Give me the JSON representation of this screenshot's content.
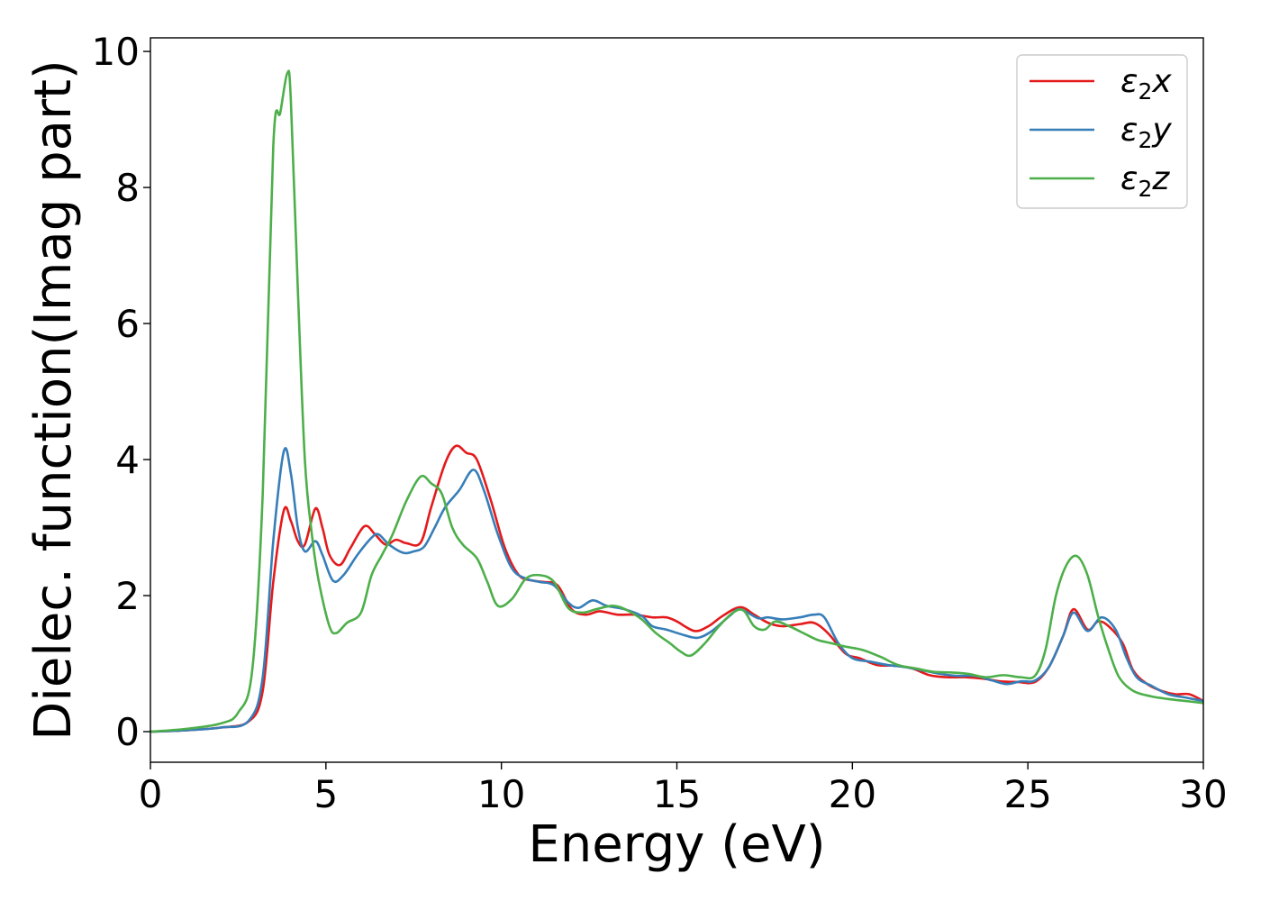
{
  "chart_data": {
    "type": "line",
    "title": "",
    "xlabel": "Energy (eV)",
    "ylabel": "Dielec. function(Imag part)",
    "xlim": [
      0,
      30
    ],
    "ylim": [
      -0.45,
      10.2
    ],
    "xticks": [
      0,
      5,
      10,
      15,
      20,
      25,
      30
    ],
    "yticks": [
      0,
      2,
      4,
      6,
      8,
      10
    ],
    "grid": false,
    "legend_position": "top-right",
    "series": [
      {
        "name": "ε₂x",
        "legend_base": "ε",
        "legend_sub": "2",
        "legend_suffix": "x",
        "color": "#e41a1c",
        "points": [
          [
            0,
            0.0
          ],
          [
            1,
            0.02
          ],
          [
            2,
            0.06
          ],
          [
            2.8,
            0.15
          ],
          [
            3.2,
            0.6
          ],
          [
            3.5,
            2.2
          ],
          [
            3.8,
            3.25
          ],
          [
            4.0,
            3.1
          ],
          [
            4.2,
            2.8
          ],
          [
            4.4,
            2.75
          ],
          [
            4.7,
            3.28
          ],
          [
            4.9,
            3.0
          ],
          [
            5.1,
            2.6
          ],
          [
            5.4,
            2.45
          ],
          [
            5.7,
            2.7
          ],
          [
            6.1,
            3.02
          ],
          [
            6.4,
            2.9
          ],
          [
            6.7,
            2.75
          ],
          [
            7.0,
            2.82
          ],
          [
            7.3,
            2.77
          ],
          [
            7.7,
            2.78
          ],
          [
            8.0,
            3.3
          ],
          [
            8.4,
            3.95
          ],
          [
            8.7,
            4.2
          ],
          [
            9.0,
            4.1
          ],
          [
            9.3,
            4.0
          ],
          [
            9.7,
            3.4
          ],
          [
            10.1,
            2.7
          ],
          [
            10.5,
            2.3
          ],
          [
            10.9,
            2.22
          ],
          [
            11.2,
            2.2
          ],
          [
            11.6,
            2.15
          ],
          [
            12.0,
            1.8
          ],
          [
            12.4,
            1.72
          ],
          [
            12.8,
            1.77
          ],
          [
            13.3,
            1.72
          ],
          [
            13.8,
            1.72
          ],
          [
            14.3,
            1.68
          ],
          [
            14.7,
            1.68
          ],
          [
            15.0,
            1.62
          ],
          [
            15.5,
            1.48
          ],
          [
            15.9,
            1.55
          ],
          [
            16.3,
            1.7
          ],
          [
            16.8,
            1.83
          ],
          [
            17.2,
            1.72
          ],
          [
            17.6,
            1.6
          ],
          [
            18.0,
            1.55
          ],
          [
            18.5,
            1.58
          ],
          [
            18.9,
            1.6
          ],
          [
            19.3,
            1.45
          ],
          [
            19.8,
            1.15
          ],
          [
            20.2,
            1.08
          ],
          [
            20.7,
            0.98
          ],
          [
            21.2,
            0.97
          ],
          [
            21.7,
            0.93
          ],
          [
            22.2,
            0.83
          ],
          [
            22.7,
            0.8
          ],
          [
            23.2,
            0.8
          ],
          [
            23.7,
            0.78
          ],
          [
            24.2,
            0.74
          ],
          [
            24.7,
            0.73
          ],
          [
            25.2,
            0.73
          ],
          [
            25.6,
            0.95
          ],
          [
            26.0,
            1.4
          ],
          [
            26.3,
            1.8
          ],
          [
            26.7,
            1.5
          ],
          [
            27.0,
            1.62
          ],
          [
            27.3,
            1.55
          ],
          [
            27.7,
            1.3
          ],
          [
            28.0,
            0.9
          ],
          [
            28.4,
            0.7
          ],
          [
            28.8,
            0.6
          ],
          [
            29.2,
            0.55
          ],
          [
            29.6,
            0.55
          ],
          [
            30.0,
            0.45
          ]
        ]
      },
      {
        "name": "ε₂y",
        "legend_base": "ε",
        "legend_sub": "2",
        "legend_suffix": "y",
        "color": "#377eb8",
        "points": [
          [
            0,
            0.0
          ],
          [
            1,
            0.02
          ],
          [
            2,
            0.06
          ],
          [
            2.8,
            0.16
          ],
          [
            3.2,
            0.8
          ],
          [
            3.5,
            2.8
          ],
          [
            3.8,
            4.12
          ],
          [
            4.0,
            3.8
          ],
          [
            4.2,
            3.0
          ],
          [
            4.4,
            2.65
          ],
          [
            4.7,
            2.8
          ],
          [
            4.9,
            2.6
          ],
          [
            5.2,
            2.22
          ],
          [
            5.5,
            2.3
          ],
          [
            5.9,
            2.6
          ],
          [
            6.3,
            2.85
          ],
          [
            6.5,
            2.9
          ],
          [
            6.8,
            2.75
          ],
          [
            7.2,
            2.63
          ],
          [
            7.5,
            2.65
          ],
          [
            7.8,
            2.72
          ],
          [
            8.1,
            3.0
          ],
          [
            8.4,
            3.3
          ],
          [
            8.8,
            3.55
          ],
          [
            9.2,
            3.85
          ],
          [
            9.5,
            3.55
          ],
          [
            9.9,
            2.9
          ],
          [
            10.3,
            2.4
          ],
          [
            10.7,
            2.25
          ],
          [
            11.1,
            2.2
          ],
          [
            11.5,
            2.15
          ],
          [
            11.9,
            1.9
          ],
          [
            12.2,
            1.82
          ],
          [
            12.6,
            1.93
          ],
          [
            13.0,
            1.85
          ],
          [
            13.5,
            1.8
          ],
          [
            14.0,
            1.7
          ],
          [
            14.3,
            1.55
          ],
          [
            14.7,
            1.5
          ],
          [
            15.2,
            1.42
          ],
          [
            15.6,
            1.38
          ],
          [
            16.0,
            1.48
          ],
          [
            16.5,
            1.7
          ],
          [
            16.8,
            1.8
          ],
          [
            17.3,
            1.67
          ],
          [
            17.6,
            1.68
          ],
          [
            18.0,
            1.65
          ],
          [
            18.5,
            1.68
          ],
          [
            18.9,
            1.72
          ],
          [
            19.2,
            1.68
          ],
          [
            19.6,
            1.3
          ],
          [
            20.0,
            1.08
          ],
          [
            20.5,
            1.03
          ],
          [
            21.0,
            0.98
          ],
          [
            21.5,
            0.95
          ],
          [
            22.0,
            0.9
          ],
          [
            22.5,
            0.85
          ],
          [
            23.0,
            0.82
          ],
          [
            23.5,
            0.82
          ],
          [
            24.0,
            0.75
          ],
          [
            24.4,
            0.7
          ],
          [
            24.8,
            0.74
          ],
          [
            25.2,
            0.75
          ],
          [
            25.6,
            0.95
          ],
          [
            26.0,
            1.4
          ],
          [
            26.3,
            1.75
          ],
          [
            26.7,
            1.48
          ],
          [
            27.1,
            1.68
          ],
          [
            27.5,
            1.5
          ],
          [
            27.8,
            1.1
          ],
          [
            28.1,
            0.8
          ],
          [
            28.5,
            0.68
          ],
          [
            29.0,
            0.55
          ],
          [
            29.5,
            0.5
          ],
          [
            30.0,
            0.45
          ]
        ]
      },
      {
        "name": "ε₂z",
        "legend_base": "ε",
        "legend_sub": "2",
        "legend_suffix": "z",
        "color": "#4daf4a",
        "points": [
          [
            0,
            0.0
          ],
          [
            1,
            0.04
          ],
          [
            2,
            0.12
          ],
          [
            2.5,
            0.28
          ],
          [
            2.9,
            0.9
          ],
          [
            3.2,
            3.5
          ],
          [
            3.5,
            8.6
          ],
          [
            3.7,
            9.1
          ],
          [
            3.9,
            9.68
          ],
          [
            4.0,
            9.3
          ],
          [
            4.2,
            6.5
          ],
          [
            4.4,
            4.0
          ],
          [
            4.6,
            2.9
          ],
          [
            4.8,
            2.2
          ],
          [
            5.1,
            1.55
          ],
          [
            5.3,
            1.45
          ],
          [
            5.6,
            1.6
          ],
          [
            6.0,
            1.75
          ],
          [
            6.3,
            2.3
          ],
          [
            6.6,
            2.6
          ],
          [
            6.9,
            2.9
          ],
          [
            7.3,
            3.4
          ],
          [
            7.7,
            3.75
          ],
          [
            8.0,
            3.65
          ],
          [
            8.3,
            3.5
          ],
          [
            8.6,
            3.0
          ],
          [
            8.9,
            2.75
          ],
          [
            9.3,
            2.55
          ],
          [
            9.6,
            2.2
          ],
          [
            9.9,
            1.85
          ],
          [
            10.3,
            1.95
          ],
          [
            10.7,
            2.25
          ],
          [
            11.1,
            2.3
          ],
          [
            11.5,
            2.2
          ],
          [
            11.9,
            1.82
          ],
          [
            12.3,
            1.75
          ],
          [
            12.7,
            1.8
          ],
          [
            13.2,
            1.85
          ],
          [
            13.6,
            1.78
          ],
          [
            14.0,
            1.65
          ],
          [
            14.4,
            1.45
          ],
          [
            14.8,
            1.3
          ],
          [
            15.1,
            1.18
          ],
          [
            15.4,
            1.12
          ],
          [
            15.8,
            1.3
          ],
          [
            16.2,
            1.55
          ],
          [
            16.6,
            1.75
          ],
          [
            16.9,
            1.78
          ],
          [
            17.2,
            1.55
          ],
          [
            17.5,
            1.5
          ],
          [
            17.8,
            1.62
          ],
          [
            18.2,
            1.55
          ],
          [
            18.6,
            1.45
          ],
          [
            19.0,
            1.35
          ],
          [
            19.4,
            1.3
          ],
          [
            19.8,
            1.25
          ],
          [
            20.3,
            1.2
          ],
          [
            20.8,
            1.1
          ],
          [
            21.3,
            0.98
          ],
          [
            21.8,
            0.93
          ],
          [
            22.3,
            0.88
          ],
          [
            22.8,
            0.87
          ],
          [
            23.3,
            0.85
          ],
          [
            23.8,
            0.8
          ],
          [
            24.3,
            0.83
          ],
          [
            24.8,
            0.8
          ],
          [
            25.2,
            0.82
          ],
          [
            25.5,
            1.2
          ],
          [
            25.8,
            2.0
          ],
          [
            26.1,
            2.45
          ],
          [
            26.4,
            2.58
          ],
          [
            26.7,
            2.3
          ],
          [
            27.0,
            1.7
          ],
          [
            27.3,
            1.2
          ],
          [
            27.6,
            0.8
          ],
          [
            28.0,
            0.6
          ],
          [
            28.5,
            0.52
          ],
          [
            29.0,
            0.48
          ],
          [
            29.5,
            0.45
          ],
          [
            30.0,
            0.42
          ]
        ]
      }
    ]
  }
}
